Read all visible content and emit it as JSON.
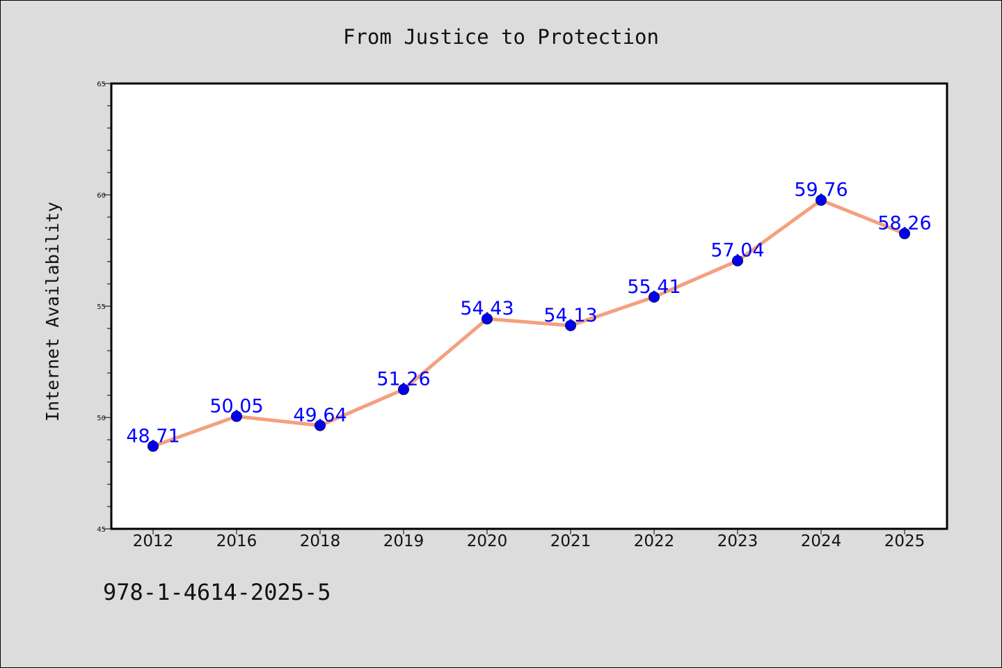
{
  "chart_data": {
    "type": "line",
    "title": "From Justice to Protection",
    "xlabel": "",
    "ylabel": "Internet Availability",
    "categories": [
      "2012",
      "2016",
      "2018",
      "2019",
      "2020",
      "2021",
      "2022",
      "2023",
      "2024",
      "2025"
    ],
    "series": [
      {
        "values": [
          48.71,
          50.05,
          49.64,
          51.26,
          54.43,
          54.13,
          55.41,
          57.04,
          59.76,
          58.26
        ],
        "data_labels": [
          "48.71",
          "50.05",
          "49.64",
          "51.26",
          "54.43",
          "54.13",
          "55.41",
          "57.04",
          "59.76",
          "58.26"
        ]
      }
    ],
    "ylim": [
      45,
      65
    ],
    "yticks": [
      "45",
      "50",
      "55",
      "60",
      "65"
    ],
    "grid": false,
    "legend": "none",
    "colors": {
      "line": "#f4a07e",
      "marker": "#0000ee",
      "label": "#0000ff",
      "background": "#dcdcdc",
      "plot_background": "#ffffff"
    }
  },
  "footer_text": "978-1-4614-2025-5"
}
